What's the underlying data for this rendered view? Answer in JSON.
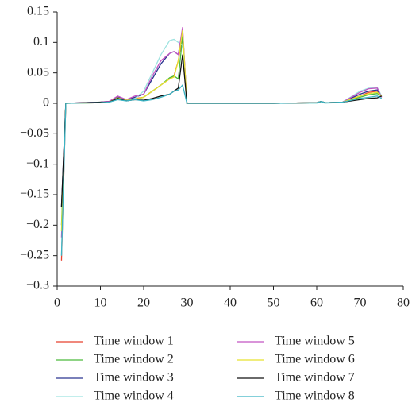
{
  "chart_data": {
    "type": "line",
    "x": [
      1,
      2,
      10,
      12,
      14,
      16,
      18,
      20,
      22,
      24,
      26,
      27,
      28,
      29,
      30,
      40,
      50,
      60,
      61,
      62,
      66,
      70,
      72,
      74,
      75
    ],
    "xlim": [
      0,
      80
    ],
    "xticks": [
      0,
      10,
      20,
      30,
      40,
      50,
      60,
      70,
      80
    ],
    "ylim": [
      -0.3,
      0.15
    ],
    "yticks": [
      {
        "value": -0.3,
        "label": "−0.3"
      },
      {
        "value": -0.25,
        "label": "−0.25"
      },
      {
        "value": -0.2,
        "label": "−0.2"
      },
      {
        "value": -0.15,
        "label": "−0.15"
      },
      {
        "value": -0.1,
        "label": "−0.1"
      },
      {
        "value": -0.05,
        "label": "−0.05"
      },
      0,
      0.05,
      0.1,
      0.15
    ],
    "series": [
      {
        "name": "Time window 1",
        "color": "#e8412f",
        "values": [
          -0.258,
          0,
          0.001,
          0.002,
          0.01,
          0.005,
          0.008,
          0.01,
          0.02,
          0.03,
          0.04,
          0.045,
          0.07,
          0.11,
          0,
          0,
          0,
          0.001,
          0.003,
          0.001,
          0.002,
          0.012,
          0.018,
          0.02,
          0.012
        ]
      },
      {
        "name": "Time window 2",
        "color": "#4cbb3c",
        "values": [
          -0.2,
          0,
          0.001,
          0.002,
          0.008,
          0.005,
          0.006,
          0.01,
          0.02,
          0.03,
          0.042,
          0.045,
          0.04,
          0.11,
          0,
          0,
          0,
          0.001,
          0.003,
          0.001,
          0.002,
          0.01,
          0.014,
          0.016,
          0.012
        ]
      },
      {
        "name": "Time window 3",
        "color": "#2b3590",
        "values": [
          -0.17,
          0,
          0.002,
          0.003,
          0.01,
          0.006,
          0.01,
          0.015,
          0.04,
          0.065,
          0.082,
          0.085,
          0.08,
          0.12,
          0,
          0,
          0,
          0.001,
          0.003,
          0.001,
          0.002,
          0.015,
          0.02,
          0.022,
          0.01
        ]
      },
      {
        "name": "Time window 4",
        "color": "#9ee3e0",
        "values": [
          -0.25,
          0,
          0.001,
          0.002,
          0.006,
          0.004,
          0.008,
          0.02,
          0.05,
          0.08,
          0.103,
          0.105,
          0.1,
          0.095,
          0,
          0,
          0,
          0,
          0.002,
          0,
          0.002,
          0.02,
          0.025,
          0.026,
          0.012
        ]
      },
      {
        "name": "Time window 5",
        "color": "#c254c2",
        "values": [
          -0.22,
          0,
          0.002,
          0.003,
          0.012,
          0.006,
          0.012,
          0.015,
          0.045,
          0.07,
          0.082,
          0.085,
          0.08,
          0.125,
          0,
          0,
          0,
          0.001,
          0.003,
          0.001,
          0.002,
          0.018,
          0.024,
          0.025,
          0.01
        ]
      },
      {
        "name": "Time window 6",
        "color": "#e6e22e",
        "values": [
          -0.21,
          0,
          0.001,
          0.002,
          0.009,
          0.005,
          0.007,
          0.01,
          0.02,
          0.03,
          0.04,
          0.043,
          0.07,
          0.12,
          0,
          0,
          0,
          0.001,
          0.003,
          0.001,
          0.002,
          0.012,
          0.016,
          0.018,
          0.012
        ]
      },
      {
        "name": "Time window 7",
        "color": "#111111",
        "values": [
          -0.17,
          0,
          0.002,
          0.002,
          0.008,
          0.004,
          0.006,
          0.005,
          0.008,
          0.012,
          0.015,
          0.02,
          0.025,
          0.08,
          0,
          0,
          0,
          0.001,
          0.003,
          0.001,
          0.002,
          0.006,
          0.008,
          0.009,
          0.012
        ]
      },
      {
        "name": "Time window 8",
        "color": "#3bb3c3",
        "values": [
          -0.25,
          0,
          0.001,
          0.002,
          0.006,
          0.004,
          0.006,
          0.004,
          0.006,
          0.01,
          0.015,
          0.02,
          0.022,
          0.03,
          0,
          0,
          0,
          0.001,
          0.003,
          0.001,
          0.002,
          0.008,
          0.01,
          0.012,
          0.008
        ]
      }
    ]
  }
}
